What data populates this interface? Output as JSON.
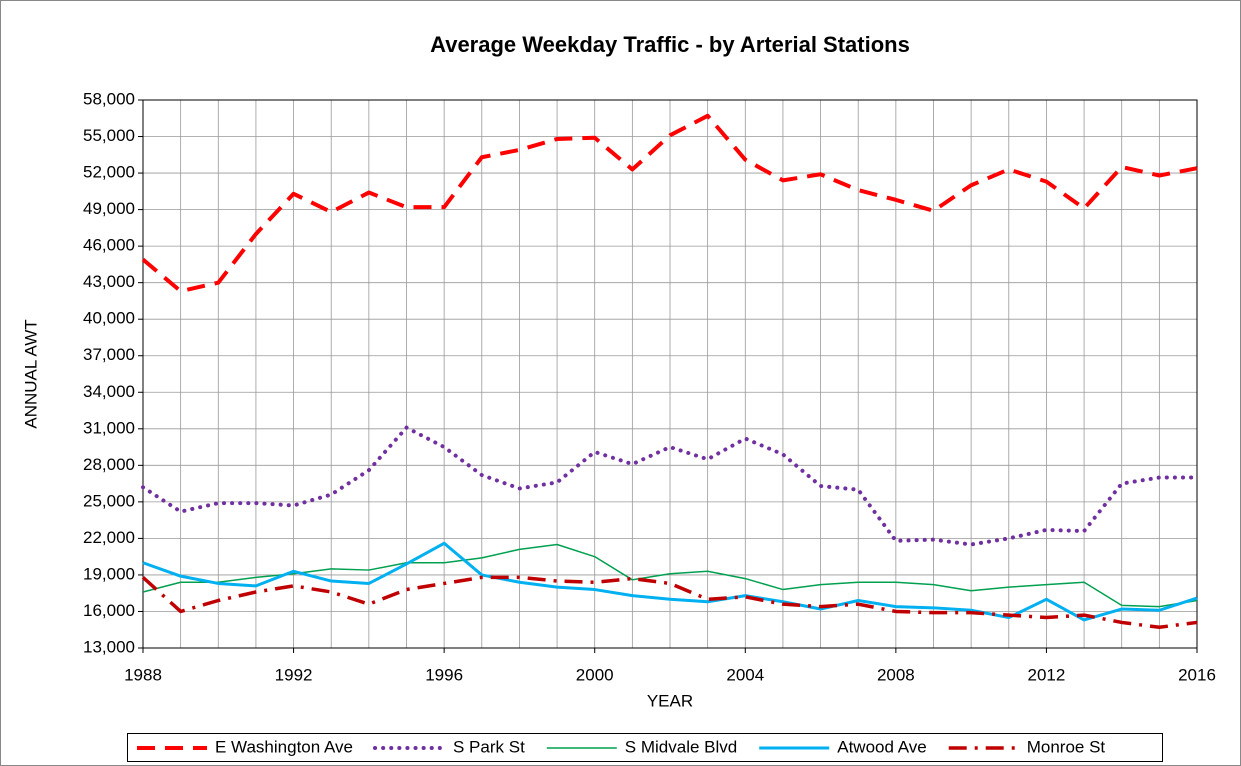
{
  "chart_data": {
    "type": "line",
    "title": "Average Weekday Traffic  - by Arterial Stations",
    "x_label": "YEAR",
    "y_label": "ANNUAL AWT",
    "x": [
      1988,
      1989,
      1990,
      1991,
      1992,
      1993,
      1994,
      1995,
      1996,
      1997,
      1998,
      1999,
      2000,
      2001,
      2002,
      2003,
      2004,
      2005,
      2006,
      2007,
      2008,
      2009,
      2010,
      2011,
      2012,
      2013,
      2014,
      2015,
      2016
    ],
    "xlim": [
      1988,
      2016
    ],
    "xticks": [
      1988,
      1992,
      1996,
      2000,
      2004,
      2008,
      2012,
      2016
    ],
    "ylim": [
      13000,
      58000
    ],
    "yticks": [
      {
        "value": 13000,
        "label": "13,000"
      },
      {
        "value": 16000,
        "label": "16,000"
      },
      {
        "value": 19000,
        "label": "19,000"
      },
      {
        "value": 22000,
        "label": "22,000"
      },
      {
        "value": 25000,
        "label": "25,000"
      },
      {
        "value": 28000,
        "label": "28,000"
      },
      {
        "value": 31000,
        "label": "31,000"
      },
      {
        "value": 34000,
        "label": "34,000"
      },
      {
        "value": 37000,
        "label": "37,000"
      },
      {
        "value": 40000,
        "label": "40,000"
      },
      {
        "value": 43000,
        "label": "43,000"
      },
      {
        "value": 46000,
        "label": "46,000"
      },
      {
        "value": 49000,
        "label": "49,000"
      },
      {
        "value": 52000,
        "label": "52,000"
      },
      {
        "value": 55000,
        "label": "55,000"
      },
      {
        "value": 58000,
        "label": "58,000"
      }
    ],
    "grid": true,
    "legend": "bottom",
    "series": [
      {
        "name": "E Washington Ave",
        "color": "#ff0000",
        "style": "dashed",
        "values": [
          44900,
          42300,
          43000,
          47000,
          50300,
          48800,
          50400,
          49200,
          49200,
          53300,
          53900,
          54800,
          54900,
          52300,
          55100,
          56700,
          53100,
          51400,
          51900,
          50600,
          49800,
          48900,
          51000,
          52300,
          51300,
          49100,
          52500,
          51800,
          52400
        ]
      },
      {
        "name": "S Park St",
        "color": "#7030a0",
        "style": "dotted",
        "values": [
          26200,
          24200,
          24900,
          24900,
          24700,
          25600,
          27600,
          31100,
          29500,
          27200,
          26100,
          26600,
          29100,
          28100,
          29500,
          28500,
          30200,
          28900,
          26300,
          26000,
          21800,
          21900,
          21500,
          22000,
          22700,
          22600,
          26500,
          27000,
          27000
        ]
      },
      {
        "name": "S Midvale Blvd",
        "color": "#00a050",
        "style": "thin",
        "values": [
          17600,
          18400,
          18400,
          18800,
          19100,
          19500,
          19400,
          20000,
          20000,
          20400,
          21100,
          21500,
          20500,
          18600,
          19100,
          19300,
          18700,
          17800,
          18200,
          18400,
          18400,
          18200,
          17700,
          18000,
          18200,
          18400,
          16500,
          16400,
          16900
        ]
      },
      {
        "name": "Atwood Ave",
        "color": "#00b0f0",
        "style": "solid",
        "values": [
          20000,
          18900,
          18300,
          18100,
          19300,
          18500,
          18300,
          19900,
          21600,
          19000,
          18400,
          18000,
          17800,
          17300,
          17000,
          16800,
          17300,
          16800,
          16200,
          16900,
          16400,
          16300,
          16100,
          15500,
          17000,
          15300,
          16200,
          16100,
          17100
        ]
      },
      {
        "name": "Monroe St",
        "color": "#c00000",
        "style": "dashdot",
        "values": [
          18800,
          16000,
          16900,
          17600,
          18100,
          17600,
          16600,
          17800,
          18300,
          18800,
          18800,
          18500,
          18400,
          18700,
          18300,
          17000,
          17200,
          16600,
          16400,
          16600,
          16000,
          15900,
          15900,
          15700,
          15500,
          15700,
          15100,
          14700,
          15100
        ]
      }
    ]
  }
}
